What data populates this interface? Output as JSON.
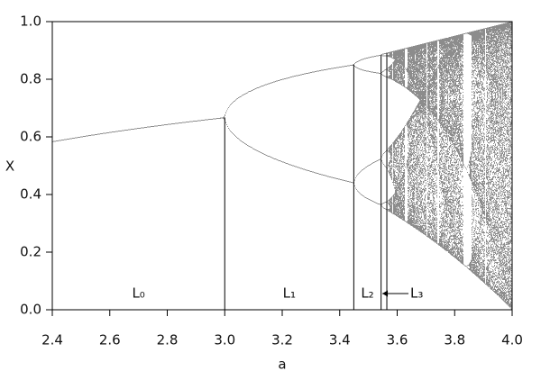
{
  "chart_data": {
    "type": "bifurcation",
    "xlabel": "a",
    "ylabel": "X",
    "xlim": [
      2.4,
      4.0
    ],
    "ylim": [
      0,
      1
    ],
    "xticks": [
      2.4,
      2.6,
      2.8,
      {
        "value": 3,
        "label": "3.0"
      },
      3.2,
      3.4,
      3.6,
      3.8,
      {
        "value": 4,
        "label": "4.0"
      }
    ],
    "yticks": [
      {
        "value": 0,
        "label": "0.0"
      },
      0.2,
      0.4,
      0.6,
      0.8,
      {
        "value": 1,
        "label": "1.0"
      }
    ],
    "boundaries": {
      "a": [
        3,
        3.449,
        3.544,
        3.564
      ],
      "x": [
        0.667,
        0.852,
        0.883,
        0.891
      ]
    },
    "regions": [
      "L₀",
      "L₁",
      "L₂",
      "L₃"
    ],
    "color": "#000000"
  }
}
